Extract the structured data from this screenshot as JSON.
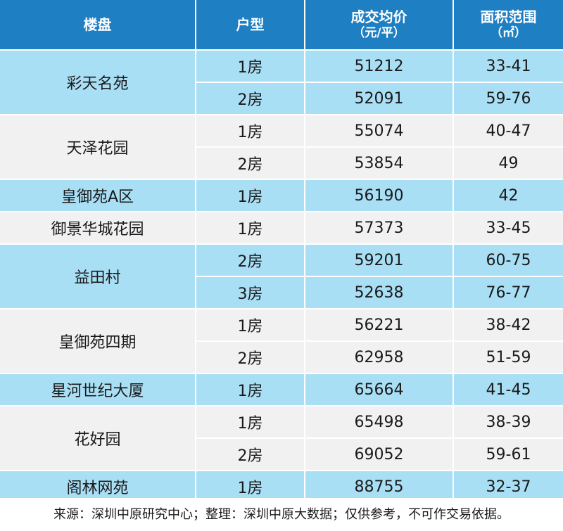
{
  "headers": {
    "project": "楼盘",
    "type": "户型",
    "price": "成交均价",
    "price_unit": "（元/平）",
    "area": "面积范围",
    "area_unit": "（㎡）"
  },
  "rows": [
    {
      "project": "彩天名苑",
      "type": "1房",
      "price": "51212",
      "area": "33-41"
    },
    {
      "project": "",
      "type": "2房",
      "price": "52091",
      "area": "59-76"
    },
    {
      "project": "天泽花园",
      "type": "1房",
      "price": "55074",
      "area": "40-47"
    },
    {
      "project": "",
      "type": "2房",
      "price": "53854",
      "area": "49"
    },
    {
      "project": "皇御苑A区",
      "type": "1房",
      "price": "56190",
      "area": "42"
    },
    {
      "project": "御景华城花园",
      "type": "1房",
      "price": "57373",
      "area": "33-45"
    },
    {
      "project": "益田村",
      "type": "2房",
      "price": "59201",
      "area": "60-75"
    },
    {
      "project": "",
      "type": "3房",
      "price": "52638",
      "area": "76-77"
    },
    {
      "project": "皇御苑四期",
      "type": "1房",
      "price": "56221",
      "area": "38-42"
    },
    {
      "project": "",
      "type": "2房",
      "price": "62958",
      "area": "51-59"
    },
    {
      "project": "星河世纪大厦",
      "type": "1房",
      "price": "65664",
      "area": "41-45"
    },
    {
      "project": "花好园",
      "type": "1房",
      "price": "65498",
      "area": "38-39"
    },
    {
      "project": "",
      "type": "2房",
      "price": "69052",
      "area": "59-61"
    },
    {
      "project": "阁林网苑",
      "type": "1房",
      "price": "88755",
      "area": "32-37"
    }
  ],
  "footnote": "来源：深圳中原研究中心；整理：深圳中原大数据；仅供参考，不可作交易依据。",
  "colors": {
    "header": "#1f7fc3",
    "band_blue": "#a9dff5",
    "band_gray": "#f1f1f1"
  }
}
